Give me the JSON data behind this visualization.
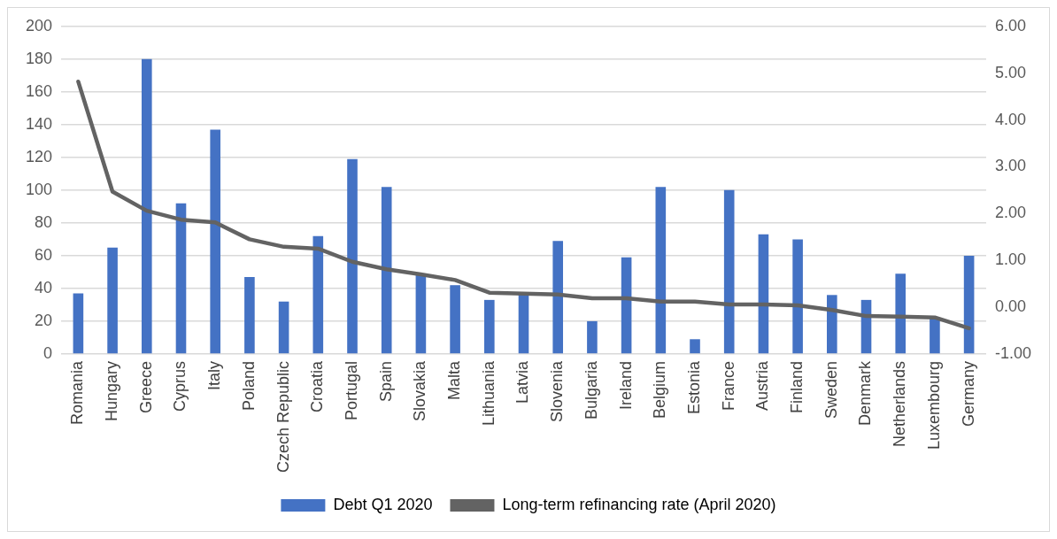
{
  "chart_data": {
    "type": "bar",
    "categories": [
      "Romania",
      "Hungary",
      "Greece",
      "Cyprus",
      "Italy",
      "Poland",
      "Czech Republic",
      "Croatia",
      "Portugal",
      "Spain",
      "Slovakia",
      "Malta",
      "Lithuania",
      "Latvia",
      "Slovenia",
      "Bulgaria",
      "Ireland",
      "Belgium",
      "Estonia",
      "France",
      "Austria",
      "Finland",
      "Sweden",
      "Denmark",
      "Netherlands",
      "Luxembourg",
      "Germany"
    ],
    "series": [
      {
        "name": "Debt Q1 2020",
        "color": "#4472c4",
        "values": [
          37,
          65,
          180,
          92,
          137,
          47,
          32,
          72,
          119,
          102,
          48,
          42,
          33,
          37,
          69,
          20,
          59,
          102,
          9,
          100,
          73,
          70,
          36,
          33,
          49,
          22,
          60
        ]
      },
      {
        "name": "Long-term refinancing rate (April 2020)",
        "type": "line",
        "axis": "y2",
        "color": "#636363",
        "values": [
          4.82,
          2.47,
          2.06,
          1.87,
          1.81,
          1.45,
          1.29,
          1.25,
          0.97,
          0.81,
          0.7,
          0.58,
          0.31,
          0.29,
          0.27,
          0.19,
          0.19,
          0.12,
          0.12,
          0.06,
          0.06,
          0.04,
          -0.06,
          -0.19,
          -0.2,
          -0.22,
          -0.45
        ]
      }
    ],
    "ylim": [
      0,
      200
    ],
    "yticks": [
      0,
      20,
      40,
      60,
      80,
      100,
      120,
      140,
      160,
      180,
      200
    ],
    "y2lim": [
      -1,
      6
    ],
    "y2ticks": [
      {
        "value": -1,
        "label": "-1.00"
      },
      {
        "value": 0,
        "label": "0.00"
      },
      {
        "value": 1,
        "label": "1.00"
      },
      {
        "value": 2,
        "label": "2.00"
      },
      {
        "value": 3,
        "label": "3.00"
      },
      {
        "value": 4,
        "label": "4.00"
      },
      {
        "value": 5,
        "label": "5.00"
      },
      {
        "value": 6,
        "label": "6.00"
      }
    ],
    "grid": "y",
    "legend": "bottom",
    "marker": "none",
    "line_style": "solid"
  }
}
